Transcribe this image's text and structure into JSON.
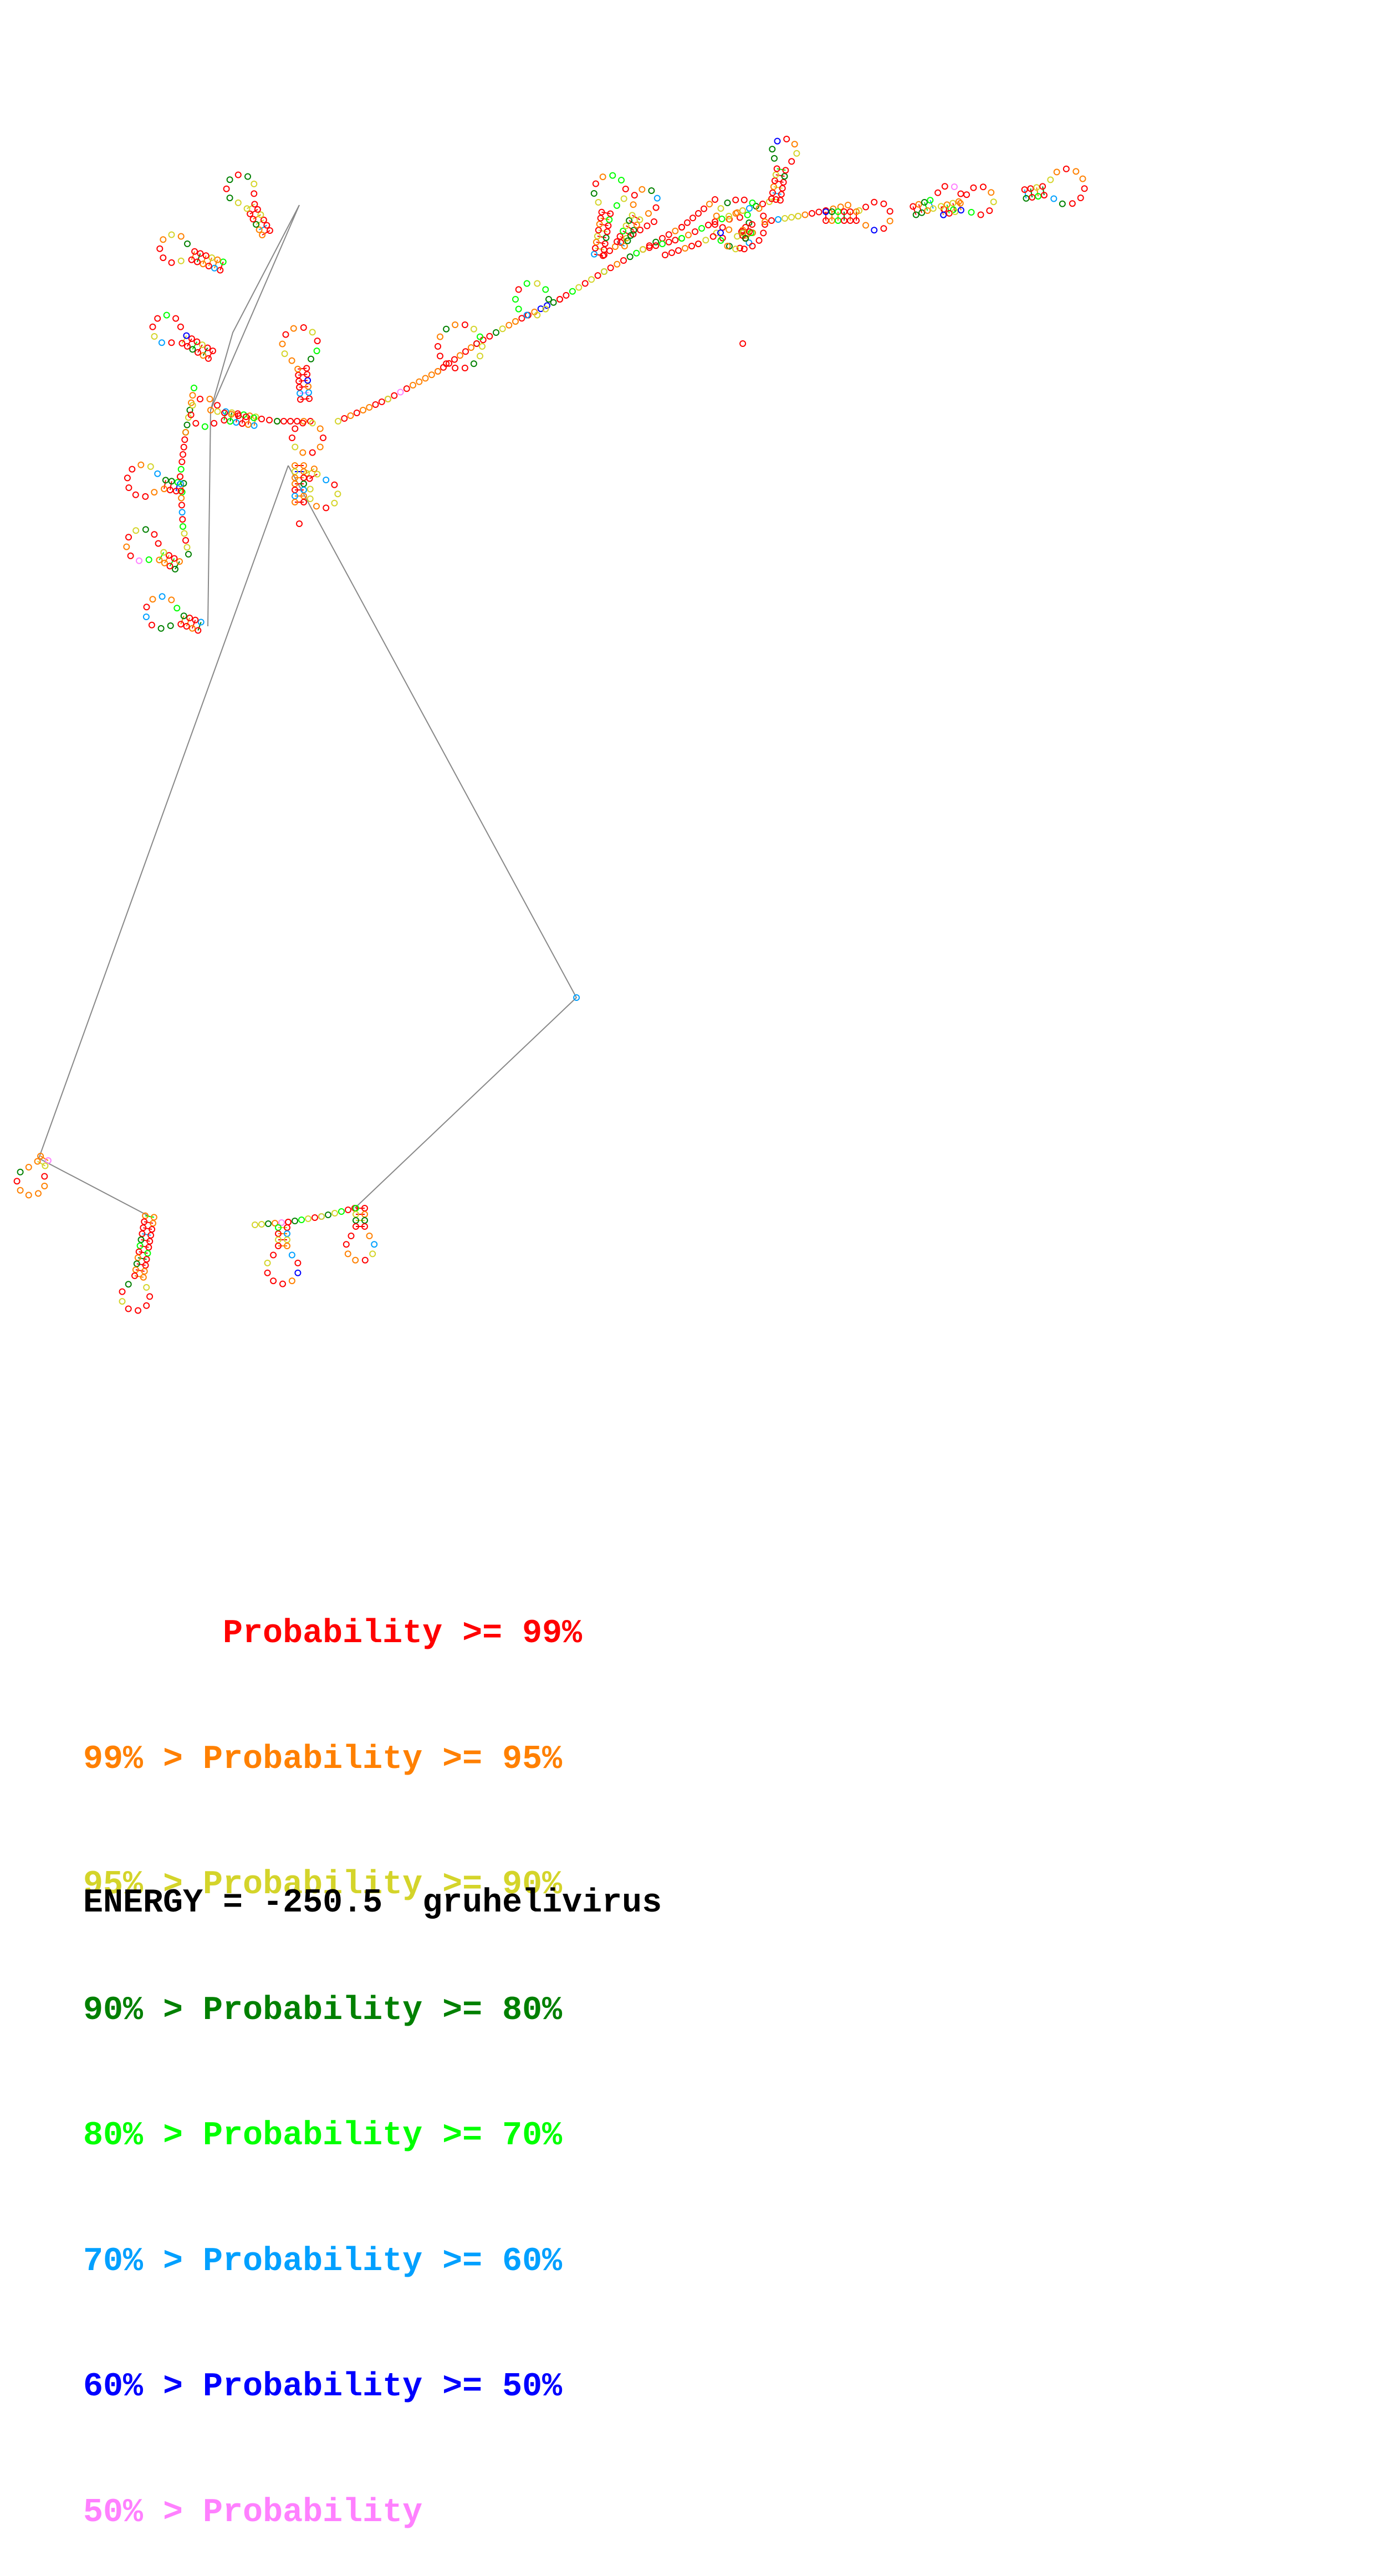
{
  "diagram": {
    "type": "rna-secondary-structure",
    "nucleotide_colors": [
      "#ff0000",
      "#ff8000",
      "#d4d42a",
      "#008000",
      "#00ff00",
      "#00a0ff",
      "#0000ff",
      "#ff80ff"
    ],
    "backbone_color": "#888888"
  },
  "legend": [
    {
      "prefix": "       ",
      "text": "Probability >= 99%",
      "color": "#ff0000"
    },
    {
      "prefix": "99% > ",
      "text": "Probability >= 95%",
      "color": "#ff8000"
    },
    {
      "prefix": "95% > ",
      "text": "Probability >= 90%",
      "color": "#d4d42a"
    },
    {
      "prefix": "90% > ",
      "text": "Probability >= 80%",
      "color": "#008000"
    },
    {
      "prefix": "80% > ",
      "text": "Probability >= 70%",
      "color": "#00ff00"
    },
    {
      "prefix": "70% > ",
      "text": "Probability >= 60%",
      "color": "#00a0ff"
    },
    {
      "prefix": "60% > ",
      "text": "Probability >= 50%",
      "color": "#0000ff"
    },
    {
      "prefix": "50% > ",
      "text": "Probability",
      "color": "#ff80ff"
    }
  ],
  "energy": {
    "label": "ENERGY = ",
    "value": "-250.5",
    "name": "gruhelivirus"
  }
}
